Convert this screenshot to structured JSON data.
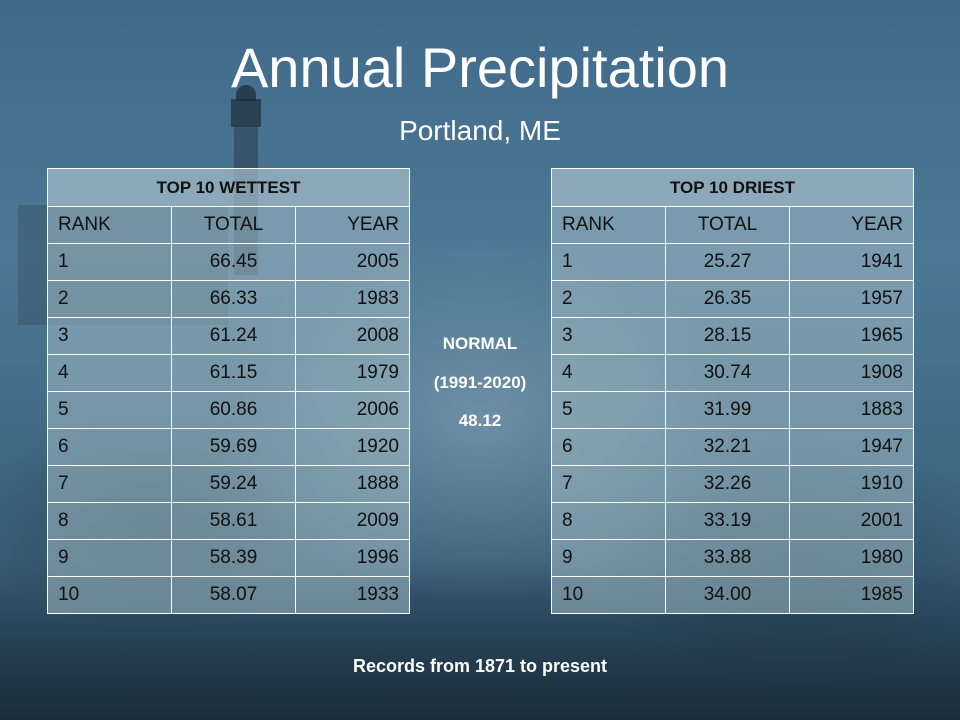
{
  "title": "Annual Precipitation",
  "subtitle": "Portland, ME",
  "wettest": {
    "header": "TOP 10 WETTEST",
    "columns": [
      "RANK",
      "TOTAL",
      "YEAR"
    ],
    "rows": [
      [
        "1",
        "66.45",
        "2005"
      ],
      [
        "2",
        "66.33",
        "1983"
      ],
      [
        "3",
        "61.24",
        "2008"
      ],
      [
        "4",
        "61.15",
        "1979"
      ],
      [
        "5",
        "60.86",
        "2006"
      ],
      [
        "6",
        "59.69",
        "1920"
      ],
      [
        "7",
        "59.24",
        "1888"
      ],
      [
        "8",
        "58.61",
        "2009"
      ],
      [
        "9",
        "58.39",
        "1996"
      ],
      [
        "10",
        "58.07",
        "1933"
      ]
    ]
  },
  "driest": {
    "header": "TOP 10 DRIEST",
    "columns": [
      "RANK",
      "TOTAL",
      "YEAR"
    ],
    "rows": [
      [
        "1",
        "25.27",
        "1941"
      ],
      [
        "2",
        "26.35",
        "1957"
      ],
      [
        "3",
        "28.15",
        "1965"
      ],
      [
        "4",
        "30.74",
        "1908"
      ],
      [
        "5",
        "31.99",
        "1883"
      ],
      [
        "6",
        "32.21",
        "1947"
      ],
      [
        "7",
        "32.26",
        "1910"
      ],
      [
        "8",
        "33.19",
        "2001"
      ],
      [
        "9",
        "33.88",
        "1980"
      ],
      [
        "10",
        "34.00",
        "1985"
      ]
    ]
  },
  "normal": {
    "label": "NORMAL",
    "period": "(1991-2020)",
    "value": "48.12"
  },
  "footnote": "Records from 1871 to present",
  "colors": {
    "background": "#3f6a8a",
    "text_light": "#ffffff",
    "table_fill": "#a0b9c3"
  }
}
